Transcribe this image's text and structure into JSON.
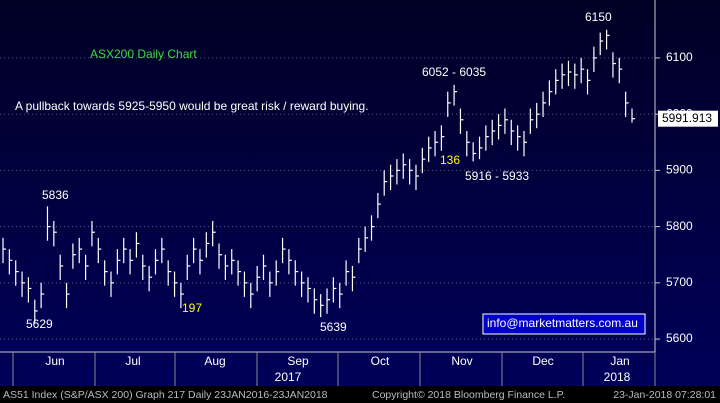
{
  "chart_data": {
    "type": "ohlc",
    "color": "#ffffff",
    "ylim": [
      5577,
      6203
    ],
    "yticks": [
      5600,
      5700,
      5800,
      5900,
      6000,
      6100
    ],
    "grid": true,
    "months": [
      "Jun",
      "Jul",
      "Aug",
      "Sep",
      "Oct",
      "Nov",
      "Dec",
      "Jan"
    ],
    "years": [
      "2017",
      "2018"
    ],
    "annotations": [
      "ASX200 Daily Chart",
      "A pullback towards 5925-5950 would be great risk / reward buying.",
      "6052 - 6035",
      "136",
      "5916 - 5933",
      "5836",
      "5629",
      "197",
      "5639",
      "6150",
      "info@marketmatters.com.au"
    ],
    "close": [
      5760,
      5740,
      5720,
      5700,
      5690,
      5650,
      5680,
      5800,
      5790,
      5730,
      5680,
      5750,
      5760,
      5730,
      5790,
      5760,
      5720,
      5700,
      5740,
      5760,
      5740,
      5770,
      5730,
      5710,
      5740,
      5760,
      5720,
      5700,
      5680,
      5730,
      5760,
      5740,
      5770,
      5790,
      5750,
      5730,
      5740,
      5720,
      5700,
      5680,
      5710,
      5730,
      5700,
      5720,
      5760,
      5740,
      5720,
      5700,
      5690,
      5670,
      5660,
      5670,
      5690,
      5680,
      5720,
      5710,
      5760,
      5780,
      5800,
      5840,
      5880,
      5890,
      5900,
      5910,
      5900,
      5890,
      5920,
      5940,
      5950,
      5960,
      6020,
      6040,
      5990,
      5950,
      5930,
      5940,
      5960,
      5970,
      5980,
      5990,
      5970,
      5960,
      5950,
      5990,
      6000,
      6020,
      6040,
      6060,
      6070,
      6075,
      6070,
      6080,
      6060,
      6100,
      6130,
      6140,
      6090,
      6080,
      6020,
      5991.913
    ],
    "high": [
      5780,
      5760,
      5740,
      5720,
      5710,
      5670,
      5700,
      5836,
      5810,
      5750,
      5700,
      5770,
      5780,
      5750,
      5810,
      5780,
      5740,
      5720,
      5760,
      5780,
      5760,
      5790,
      5750,
      5730,
      5760,
      5780,
      5740,
      5720,
      5700,
      5750,
      5780,
      5760,
      5790,
      5810,
      5770,
      5750,
      5760,
      5740,
      5720,
      5700,
      5730,
      5750,
      5720,
      5740,
      5780,
      5760,
      5740,
      5720,
      5710,
      5690,
      5680,
      5690,
      5710,
      5700,
      5740,
      5730,
      5780,
      5800,
      5820,
      5860,
      5900,
      5910,
      5920,
      5930,
      5920,
      5910,
      5940,
      5960,
      5970,
      5980,
      6040,
      6052,
      6010,
      5970,
      5950,
      5960,
      5980,
      5990,
      6000,
      6010,
      5990,
      5980,
      5970,
      6010,
      6020,
      6040,
      6060,
      6080,
      6090,
      6095,
      6090,
      6100,
      6080,
      6120,
      6145,
      6150,
      6110,
      6100,
      6040,
      6010
    ],
    "low": [
      5735,
      5715,
      5695,
      5675,
      5665,
      5629,
      5655,
      5775,
      5765,
      5705,
      5655,
      5725,
      5735,
      5705,
      5765,
      5735,
      5695,
      5675,
      5715,
      5735,
      5715,
      5745,
      5705,
      5685,
      5715,
      5735,
      5695,
      5675,
      5655,
      5705,
      5735,
      5715,
      5745,
      5765,
      5725,
      5705,
      5715,
      5695,
      5675,
      5655,
      5685,
      5705,
      5675,
      5695,
      5735,
      5715,
      5695,
      5675,
      5665,
      5645,
      5639,
      5645,
      5665,
      5655,
      5695,
      5685,
      5735,
      5755,
      5775,
      5815,
      5855,
      5865,
      5875,
      5885,
      5875,
      5865,
      5895,
      5915,
      5925,
      5935,
      5995,
      6015,
      5965,
      5925,
      5916,
      5920,
      5935,
      5945,
      5955,
      5965,
      5945,
      5935,
      5925,
      5965,
      5975,
      5995,
      6015,
      6035,
      6045,
      6050,
      6045,
      6055,
      6035,
      6075,
      6105,
      6115,
      6065,
      6055,
      5995,
      5985
    ],
    "footer": [
      "AS51 Index (S&P/ASX 200) Graph 217  Daily 23JAN2016-23JAN2018",
      "Copyright© 2018 Bloomberg Finance L.P.",
      "23-Jan-2018 07:28:01"
    ]
  }
}
